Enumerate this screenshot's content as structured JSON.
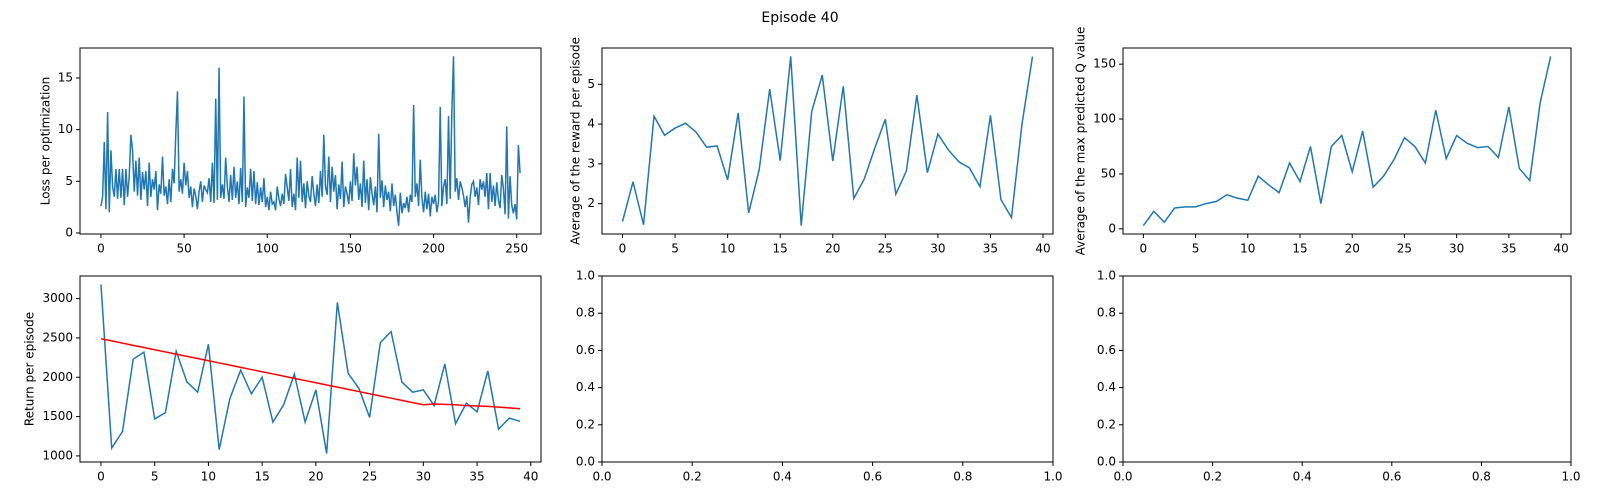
{
  "title": "Episode 40",
  "chart_data": [
    {
      "type": "line",
      "ylabel": "Loss per optimization",
      "xlim": [
        -12.6,
        264.6
      ],
      "ylim": [
        -0.1,
        17.9
      ],
      "xticks": [
        0,
        50,
        100,
        150,
        200,
        250
      ],
      "yticks": [
        0,
        5,
        10,
        15
      ],
      "series": [
        {
          "color": "#1f77b4",
          "values": [
            2.6,
            3.5,
            8.8,
            2.3,
            11.7,
            2.0,
            8.0,
            4.5,
            3.5,
            6.2,
            3.3,
            6.2,
            3.4,
            6.2,
            2.7,
            6.2,
            3.5,
            5.5,
            9.5,
            8.0,
            4.0,
            7.0,
            3.6,
            7.3,
            3.2,
            5.9,
            4.2,
            6.0,
            2.6,
            6.8,
            3.5,
            5.2,
            4.2,
            6.0,
            2.2,
            4.7,
            3.8,
            7.4,
            3.6,
            4.5,
            2.8,
            5.2,
            3.0,
            6.2,
            4.8,
            9.6,
            13.7,
            4.0,
            5.2,
            3.8,
            6.8,
            4.6,
            6.0,
            3.4,
            4.5,
            2.5,
            4.3,
            3.6,
            2.3,
            4.0,
            5.0,
            3.0,
            4.6,
            4.2,
            3.9,
            5.3,
            3.0,
            6.8,
            2.9,
            13.0,
            3.2,
            16.0,
            3.4,
            4.7,
            3.3,
            7.3,
            4.5,
            3.0,
            5.6,
            3.2,
            6.4,
            3.4,
            5.0,
            2.8,
            6.3,
            3.0,
            13.2,
            2.5,
            4.4,
            3.4,
            6.2,
            3.1,
            6.0,
            2.8,
            4.9,
            2.7,
            4.4,
            3.0,
            5.3,
            2.5,
            3.5,
            2.2,
            4.0,
            2.8,
            3.0,
            2.2,
            4.5,
            3.3,
            2.6,
            3.8,
            2.8,
            5.7,
            4.4,
            3.1,
            6.2,
            2.5,
            3.8,
            2.2,
            7.3,
            3.4,
            7.0,
            3.0,
            4.8,
            2.4,
            5.0,
            3.6,
            3.0,
            5.5,
            3.8,
            2.6,
            4.7,
            2.9,
            6.0,
            3.5,
            9.5,
            4.5,
            3.7,
            7.4,
            3.0,
            6.4,
            4.0,
            5.6,
            2.3,
            4.7,
            3.3,
            6.9,
            2.5,
            4.5,
            3.8,
            2.8,
            5.0,
            3.1,
            7.7,
            4.6,
            6.4,
            3.2,
            4.8,
            2.5,
            7.0,
            2.9,
            5.2,
            2.2,
            5.4,
            3.8,
            2.7,
            4.5,
            2.0,
            9.6,
            3.4,
            5.1,
            2.5,
            4.6,
            3.2,
            4.0,
            2.1,
            4.8,
            2.6,
            3.7,
            2.0,
            0.7,
            3.9,
            1.9,
            2.9,
            2.4,
            3.5,
            2.0,
            3.7,
            3.0,
            12.4,
            3.5,
            4.8,
            2.6,
            7.1,
            3.4,
            2.0,
            4.0,
            2.3,
            3.8,
            1.6,
            3.5,
            2.8,
            3.7,
            2.0,
            3.1,
            12.2,
            2.6,
            4.5,
            5.2,
            2.8,
            11.3,
            3.3,
            11.8,
            17.1,
            4.0,
            5.3,
            3.2,
            5.0,
            4.4,
            3.6,
            2.5,
            3.6,
            1.0,
            3.4,
            4.7,
            5.0,
            3.5,
            4.4,
            2.7,
            5.2,
            4.2,
            5.0,
            3.5,
            5.8,
            2.3,
            5.8,
            3.0,
            4.6,
            2.6,
            4.9,
            3.2,
            2.4,
            5.6,
            4.3,
            1.8,
            10.3,
            1.4,
            5.5,
            2.7,
            1.9,
            2.8,
            1.3,
            8.5,
            5.8
          ]
        }
      ]
    },
    {
      "type": "line",
      "ylabel": "Average of the reward per episode",
      "xlim": [
        -1.95,
        40.95
      ],
      "ylim": [
        1.2375,
        5.9125
      ],
      "xticks": [
        0,
        5,
        10,
        15,
        20,
        25,
        30,
        35,
        40
      ],
      "yticks": [
        2,
        3,
        4,
        5
      ],
      "series": [
        {
          "color": "#1f77b4",
          "values": [
            1.55,
            2.55,
            1.47,
            4.2,
            3.72,
            3.9,
            4.02,
            3.8,
            3.42,
            3.45,
            2.6,
            4.28,
            1.77,
            2.85,
            4.88,
            3.08,
            5.7,
            1.45,
            4.32,
            5.23,
            3.07,
            4.95,
            2.13,
            2.62,
            3.4,
            4.12,
            2.24,
            2.82,
            4.73,
            2.78,
            3.75,
            3.35,
            3.05,
            2.9,
            2.43,
            4.22,
            2.1,
            1.65,
            4.0,
            5.7
          ]
        }
      ]
    },
    {
      "type": "line",
      "ylabel": "Average of the max predicted Q value",
      "xlim": [
        -1.95,
        40.95
      ],
      "ylim": [
        -4.7,
        164.7
      ],
      "xticks": [
        0,
        5,
        10,
        15,
        20,
        25,
        30,
        35,
        40
      ],
      "yticks": [
        0,
        50,
        100,
        150
      ],
      "series": [
        {
          "color": "#1f77b4",
          "values": [
            3,
            16,
            6,
            19,
            20,
            20,
            23,
            25,
            31,
            28,
            26,
            48,
            40,
            33,
            60,
            43,
            75,
            23,
            75,
            85,
            52,
            89,
            38,
            48,
            63,
            83,
            75,
            60,
            108,
            64,
            85,
            78,
            74,
            75,
            65,
            111,
            55,
            44,
            115,
            157
          ]
        }
      ]
    },
    {
      "type": "line",
      "ylabel": "Return per episode",
      "xlim": [
        -1.95,
        40.95
      ],
      "ylim": [
        922.5,
        3287.5
      ],
      "xticks": [
        0,
        5,
        10,
        15,
        20,
        25,
        30,
        35,
        40
      ],
      "yticks": [
        1000,
        1500,
        2000,
        2500,
        3000
      ],
      "series": [
        {
          "color": "#1f77b4",
          "values": [
            3180,
            1100,
            1310,
            2230,
            2320,
            1470,
            1550,
            2330,
            1940,
            1810,
            2420,
            1080,
            1730,
            2090,
            1790,
            2000,
            1430,
            1650,
            2040,
            1430,
            1840,
            1030,
            2950,
            2050,
            1860,
            1490,
            2440,
            2580,
            1940,
            1810,
            1840,
            1640,
            2170,
            1410,
            1670,
            1560,
            2080,
            1340,
            1480,
            1440
          ]
        },
        {
          "color": "#ff0000",
          "values": [
            2490,
            2462,
            2434,
            2406,
            2378,
            2350,
            2322,
            2294,
            2266,
            2238,
            2210,
            2182,
            2154,
            2126,
            2098,
            2070,
            2042,
            2014,
            1986,
            1958,
            1930,
            1902,
            1874,
            1846,
            1818,
            1790,
            1762,
            1734,
            1706,
            1678,
            1650,
            1660,
            1655,
            1650,
            1640,
            1635,
            1630,
            1620,
            1610,
            1600
          ]
        }
      ]
    },
    {
      "type": "line",
      "xlim": [
        0,
        1
      ],
      "ylim": [
        0,
        1
      ],
      "xticks": [
        {
          "value": 0,
          "label": "0.0"
        },
        {
          "value": 0.2,
          "label": "0.2"
        },
        {
          "value": 0.4,
          "label": "0.4"
        },
        {
          "value": 0.6,
          "label": "0.6"
        },
        {
          "value": 0.8,
          "label": "0.8"
        },
        {
          "value": 1,
          "label": "1.0"
        }
      ],
      "yticks": [
        {
          "value": 0,
          "label": "0.0"
        },
        {
          "value": 0.2,
          "label": "0.2"
        },
        {
          "value": 0.4,
          "label": "0.4"
        },
        {
          "value": 0.6,
          "label": "0.6"
        },
        {
          "value": 0.8,
          "label": "0.8"
        },
        {
          "value": 1,
          "label": "1.0"
        }
      ],
      "series": []
    },
    {
      "type": "line",
      "xlim": [
        0,
        1
      ],
      "ylim": [
        0,
        1
      ],
      "xticks": [
        {
          "value": 0,
          "label": "0.0"
        },
        {
          "value": 0.2,
          "label": "0.2"
        },
        {
          "value": 0.4,
          "label": "0.4"
        },
        {
          "value": 0.6,
          "label": "0.6"
        },
        {
          "value": 0.8,
          "label": "0.8"
        },
        {
          "value": 1,
          "label": "1.0"
        }
      ],
      "yticks": [
        {
          "value": 0,
          "label": "0.0"
        },
        {
          "value": 0.2,
          "label": "0.2"
        },
        {
          "value": 0.4,
          "label": "0.4"
        },
        {
          "value": 0.6,
          "label": "0.6"
        },
        {
          "value": 0.8,
          "label": "0.8"
        },
        {
          "value": 1,
          "label": "1.0"
        }
      ],
      "series": []
    }
  ]
}
